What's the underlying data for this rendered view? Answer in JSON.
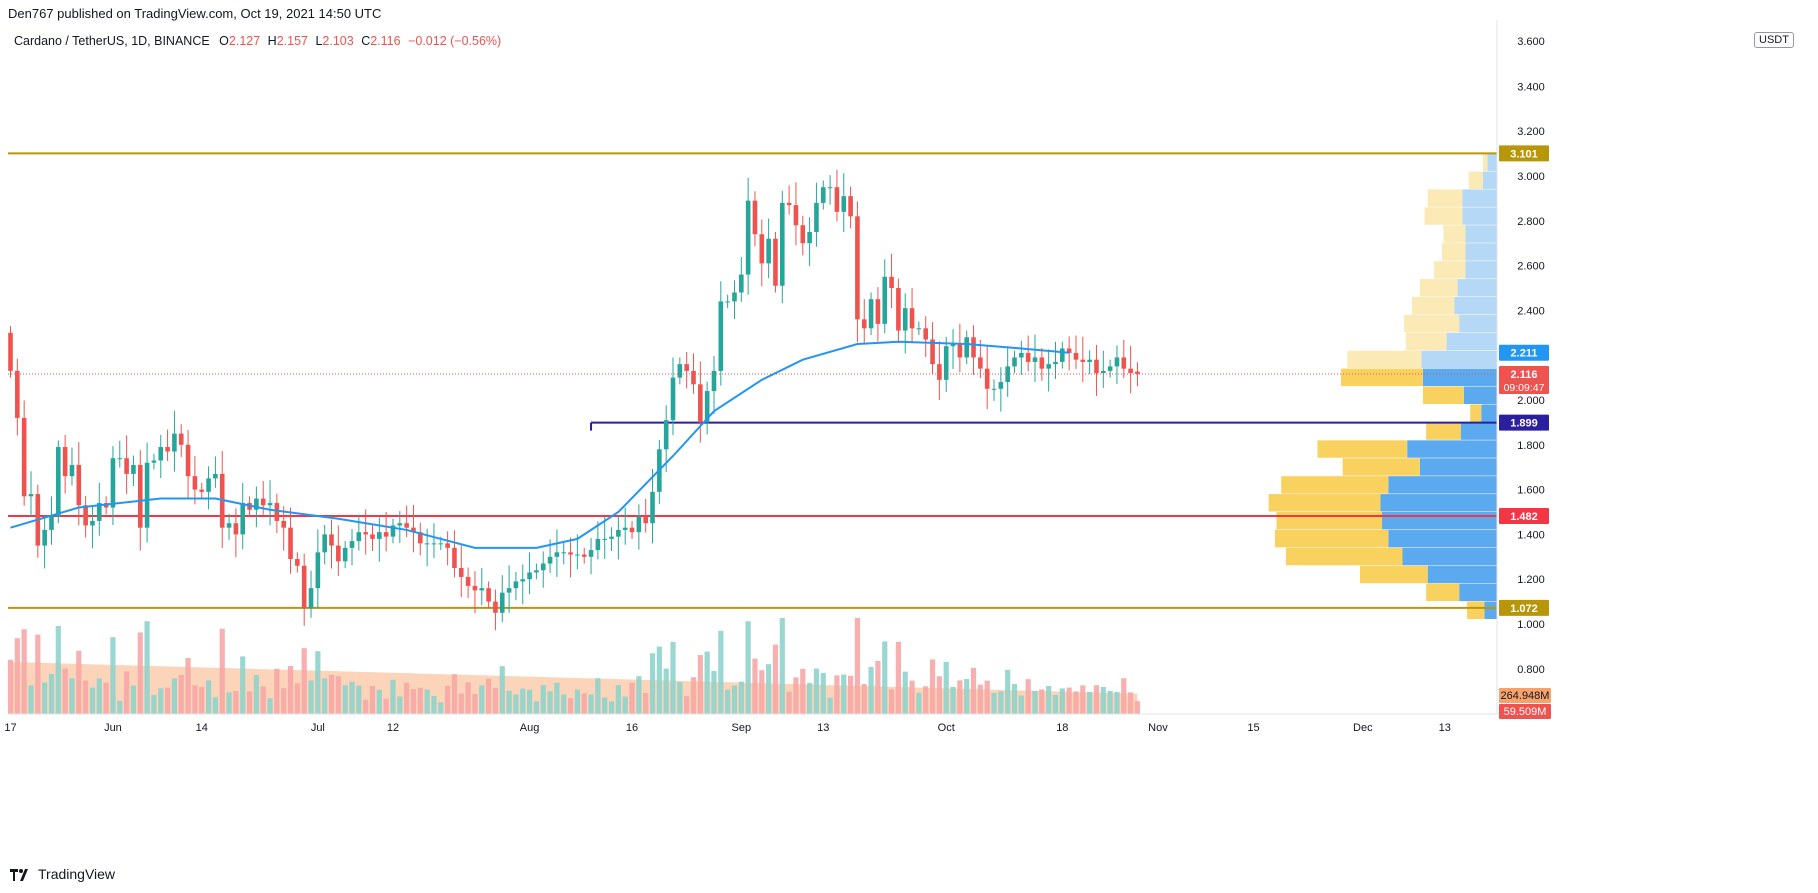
{
  "header": {
    "published": "Den767 published on TradingView.com, Oct 19, 2021 14:50 UTC"
  },
  "legend": {
    "symbol": "Cardano / TetherUS, 1D, BINANCE",
    "open_label": "O",
    "open": "2.127",
    "high_label": "H",
    "high": "2.157",
    "low_label": "L",
    "low": "2.103",
    "close_label": "C",
    "close": "2.116",
    "change": "−0.012 (−0.56%)"
  },
  "currency": "USDT",
  "footer": {
    "brand": "TradingView"
  },
  "colors": {
    "up": "#26a69a",
    "down": "#ef5350",
    "ma": "#2196f3",
    "level_gold": "#b8960a",
    "level_red": "#f23645",
    "level_purple": "#2b1fa0",
    "vp_up": "#5ba9ee",
    "vp_down": "#f8d15e",
    "volume_ma": "#f8b88b"
  },
  "chart_data": {
    "type": "candlestick",
    "y_axis": {
      "ylim": [
        0.62,
        3.7
      ],
      "ticks": [
        0.8,
        1.0,
        1.2,
        1.4,
        1.6,
        1.8,
        2.0,
        2.2,
        2.4,
        2.6,
        2.8,
        3.0,
        3.2,
        3.4
      ],
      "tick_labels": [
        "0.800",
        "1.000",
        "1.200",
        "1.400",
        "1.600",
        "1.800",
        "2.000",
        "2.200",
        "2.400",
        "2.600",
        "2.800",
        "3.000",
        "3.200",
        "3.400"
      ],
      "top_label": "3.600"
    },
    "x_axis": {
      "start_date": "2021-05-17",
      "end_date": "2021-12-28",
      "ticks": [
        {
          "date": "2021-05-17",
          "label": "17"
        },
        {
          "date": "2021-06-01",
          "label": "Jun"
        },
        {
          "date": "2021-06-14",
          "label": "14"
        },
        {
          "date": "2021-07-01",
          "label": "Jul"
        },
        {
          "date": "2021-07-12",
          "label": "12"
        },
        {
          "date": "2021-08-01",
          "label": "Aug"
        },
        {
          "date": "2021-08-16",
          "label": "16"
        },
        {
          "date": "2021-09-01",
          "label": "Sep"
        },
        {
          "date": "2021-09-13",
          "label": "13"
        },
        {
          "date": "2021-10-01",
          "label": "Oct"
        },
        {
          "date": "2021-10-18",
          "label": "18"
        },
        {
          "date": "2021-11-01",
          "label": "Nov"
        },
        {
          "date": "2021-11-15",
          "label": "15"
        },
        {
          "date": "2021-12-01",
          "label": "Dec"
        },
        {
          "date": "2021-12-13",
          "label": "13"
        }
      ]
    },
    "series": [
      {
        "name": "Cardano / TetherUS",
        "start_date": "2021-05-17",
        "close": [
          2.13,
          1.92,
          1.57,
          1.58,
          1.35,
          1.42,
          1.48,
          1.79,
          1.66,
          1.71,
          1.53,
          1.44,
          1.46,
          1.54,
          1.52,
          1.74,
          1.74,
          1.67,
          1.71,
          1.43,
          1.72,
          1.73,
          1.79,
          1.77,
          1.85,
          1.8,
          1.66,
          1.6,
          1.59,
          1.65,
          1.67,
          1.43,
          1.45,
          1.4,
          1.54,
          1.51,
          1.56,
          1.53,
          1.54,
          1.46,
          1.43,
          1.29,
          1.26,
          1.07,
          1.16,
          1.32,
          1.4,
          1.35,
          1.28,
          1.34,
          1.37,
          1.41,
          1.4,
          1.38,
          1.41,
          1.39,
          1.44,
          1.45,
          1.43,
          1.41,
          1.36,
          1.36,
          1.36,
          1.36,
          1.34,
          1.25,
          1.21,
          1.17,
          1.15,
          1.16,
          1.1,
          1.05,
          1.14,
          1.16,
          1.19,
          1.2,
          1.23,
          1.24,
          1.27,
          1.3,
          1.32,
          1.32,
          1.31,
          1.31,
          1.3,
          1.33,
          1.38,
          1.38,
          1.39,
          1.42,
          1.43,
          1.41,
          1.48,
          1.45,
          1.59,
          1.78,
          1.91,
          2.1,
          2.16,
          2.13,
          2.07,
          1.9,
          2.04,
          2.13,
          2.44,
          2.44,
          2.48,
          2.56,
          2.89,
          2.74,
          2.61,
          2.72,
          2.51,
          2.88,
          2.87,
          2.78,
          2.7,
          2.75,
          2.88,
          2.95,
          2.95,
          2.84,
          2.91,
          2.82,
          2.36,
          2.32,
          2.45,
          2.34,
          2.55,
          2.5,
          2.31,
          2.41,
          2.32,
          2.32,
          2.27,
          2.16,
          2.09,
          2.24,
          2.25,
          2.19,
          2.28,
          2.19,
          2.14,
          2.05,
          2.05,
          2.08,
          2.15,
          2.19,
          2.21,
          2.17,
          2.19,
          2.14,
          2.16,
          2.17,
          2.23,
          2.21,
          2.18,
          2.17,
          2.18,
          2.12,
          2.13,
          2.15,
          2.19,
          2.14,
          2.12,
          2.116
        ],
        "open": [
          2.3,
          2.13,
          1.92,
          1.57,
          1.58,
          1.35,
          1.42,
          1.48,
          1.79,
          1.66,
          1.71,
          1.53,
          1.44,
          1.46,
          1.54,
          1.52,
          1.74,
          1.74,
          1.67,
          1.71,
          1.43,
          1.72,
          1.73,
          1.79,
          1.77,
          1.85,
          1.8,
          1.66,
          1.6,
          1.59,
          1.65,
          1.67,
          1.43,
          1.45,
          1.4,
          1.54,
          1.51,
          1.56,
          1.53,
          1.54,
          1.46,
          1.43,
          1.29,
          1.26,
          1.07,
          1.16,
          1.32,
          1.4,
          1.35,
          1.28,
          1.34,
          1.37,
          1.41,
          1.4,
          1.38,
          1.41,
          1.39,
          1.44,
          1.45,
          1.43,
          1.41,
          1.36,
          1.36,
          1.36,
          1.36,
          1.34,
          1.25,
          1.21,
          1.17,
          1.15,
          1.16,
          1.1,
          1.05,
          1.14,
          1.16,
          1.19,
          1.2,
          1.23,
          1.24,
          1.27,
          1.3,
          1.32,
          1.32,
          1.31,
          1.31,
          1.3,
          1.33,
          1.38,
          1.38,
          1.39,
          1.42,
          1.43,
          1.41,
          1.48,
          1.45,
          1.59,
          1.78,
          1.91,
          2.1,
          2.16,
          2.13,
          2.07,
          1.9,
          2.04,
          2.13,
          2.44,
          2.44,
          2.48,
          2.56,
          2.89,
          2.74,
          2.61,
          2.72,
          2.51,
          2.88,
          2.87,
          2.78,
          2.7,
          2.75,
          2.88,
          2.95,
          2.95,
          2.84,
          2.91,
          2.82,
          2.36,
          2.32,
          2.45,
          2.34,
          2.55,
          2.5,
          2.31,
          2.41,
          2.32,
          2.32,
          2.27,
          2.16,
          2.09,
          2.24,
          2.25,
          2.19,
          2.28,
          2.19,
          2.14,
          2.05,
          2.05,
          2.08,
          2.15,
          2.19,
          2.21,
          2.17,
          2.19,
          2.14,
          2.16,
          2.17,
          2.23,
          2.21,
          2.18,
          2.17,
          2.18,
          2.12,
          2.13,
          2.15,
          2.19,
          2.14,
          2.127
        ]
      }
    ],
    "moving_average": {
      "name": "MA",
      "points": [
        {
          "date": "2021-05-17",
          "value": 1.43
        },
        {
          "date": "2021-05-27",
          "value": 1.52
        },
        {
          "date": "2021-06-08",
          "value": 1.56
        },
        {
          "date": "2021-06-16",
          "value": 1.56
        },
        {
          "date": "2021-06-24",
          "value": 1.51
        },
        {
          "date": "2021-07-04",
          "value": 1.47
        },
        {
          "date": "2021-07-14",
          "value": 1.42
        },
        {
          "date": "2021-07-24",
          "value": 1.34
        },
        {
          "date": "2021-08-02",
          "value": 1.34
        },
        {
          "date": "2021-08-08",
          "value": 1.38
        },
        {
          "date": "2021-08-14",
          "value": 1.5
        },
        {
          "date": "2021-08-22",
          "value": 1.75
        },
        {
          "date": "2021-08-28",
          "value": 1.95
        },
        {
          "date": "2021-09-04",
          "value": 2.09
        },
        {
          "date": "2021-09-10",
          "value": 2.18
        },
        {
          "date": "2021-09-18",
          "value": 2.25
        },
        {
          "date": "2021-09-24",
          "value": 2.26
        },
        {
          "date": "2021-10-04",
          "value": 2.25
        },
        {
          "date": "2021-10-12",
          "value": 2.23
        },
        {
          "date": "2021-10-19",
          "value": 2.211
        }
      ]
    },
    "horizontal_levels": [
      {
        "value": 3.101,
        "label": "3.101",
        "color": "gold"
      },
      {
        "value": 1.899,
        "label": "1.899",
        "color": "purple",
        "start_date": "2021-08-10"
      },
      {
        "value": 1.482,
        "label": "1.482",
        "color": "red"
      },
      {
        "value": 1.072,
        "label": "1.072",
        "color": "gold"
      }
    ],
    "price_labels": {
      "ma": "2.211",
      "last": "2.116",
      "countdown": "09:09:47",
      "volume_ma": "264.948M",
      "volume": "59.509M"
    },
    "volume_profile": {
      "rows": [
        {
          "low": 3.02,
          "high": 3.1,
          "up": 0.06,
          "down": 0.03
        },
        {
          "low": 2.94,
          "high": 3.02,
          "up": 0.09,
          "down": 0.09
        },
        {
          "low": 2.86,
          "high": 2.94,
          "up": 0.22,
          "down": 0.22
        },
        {
          "low": 2.78,
          "high": 2.86,
          "up": 0.22,
          "down": 0.24
        },
        {
          "low": 2.7,
          "high": 2.78,
          "up": 0.2,
          "down": 0.14
        },
        {
          "low": 2.62,
          "high": 2.7,
          "up": 0.2,
          "down": 0.15
        },
        {
          "low": 2.54,
          "high": 2.62,
          "up": 0.2,
          "down": 0.2
        },
        {
          "low": 2.46,
          "high": 2.54,
          "up": 0.25,
          "down": 0.24
        },
        {
          "low": 2.38,
          "high": 2.46,
          "up": 0.27,
          "down": 0.27
        },
        {
          "low": 2.3,
          "high": 2.38,
          "up": 0.24,
          "down": 0.35
        },
        {
          "low": 2.22,
          "high": 2.3,
          "up": 0.32,
          "down": 0.26
        },
        {
          "low": 2.14,
          "high": 2.22,
          "up": 0.48,
          "down": 0.47
        },
        {
          "low": 2.06,
          "high": 2.14,
          "up": 0.47,
          "down": 0.52
        },
        {
          "low": 1.98,
          "high": 2.06,
          "up": 0.21,
          "down": 0.26
        },
        {
          "low": 1.9,
          "high": 1.98,
          "up": 0.1,
          "down": 0.07
        },
        {
          "low": 1.82,
          "high": 1.9,
          "up": 0.23,
          "down": 0.22
        },
        {
          "low": 1.74,
          "high": 1.82,
          "up": 0.57,
          "down": 0.57
        },
        {
          "low": 1.66,
          "high": 1.74,
          "up": 0.49,
          "down": 0.49
        },
        {
          "low": 1.58,
          "high": 1.66,
          "up": 0.69,
          "down": 0.68
        },
        {
          "low": 1.5,
          "high": 1.58,
          "up": 0.74,
          "down": 0.71
        },
        {
          "low": 1.42,
          "high": 1.5,
          "up": 0.73,
          "down": 0.67
        },
        {
          "low": 1.34,
          "high": 1.42,
          "up": 0.69,
          "down": 0.72
        },
        {
          "low": 1.26,
          "high": 1.34,
          "up": 0.6,
          "down": 0.74
        },
        {
          "low": 1.18,
          "high": 1.26,
          "up": 0.44,
          "down": 0.43
        },
        {
          "low": 1.1,
          "high": 1.18,
          "up": 0.24,
          "down": 0.21
        },
        {
          "low": 1.02,
          "high": 1.1,
          "up": 0.08,
          "down": 0.11
        }
      ]
    }
  }
}
